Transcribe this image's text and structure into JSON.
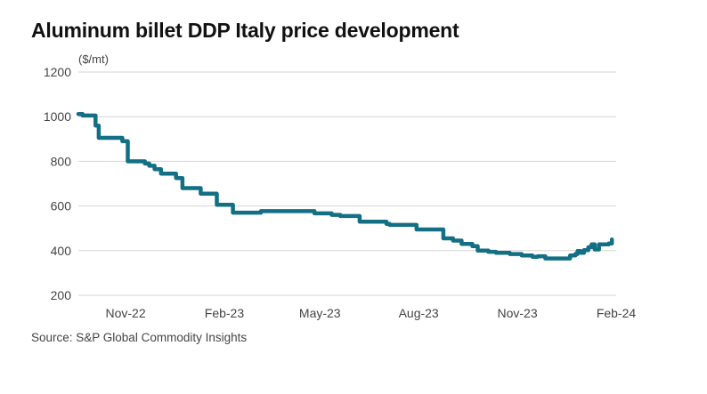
{
  "chart_data": {
    "type": "line",
    "title": "Aluminum billet DDP Italy price development",
    "ylabel": "($/mt)",
    "xlabel": "",
    "source": "Source: S&P Global Commodity Insights",
    "ylim": [
      200,
      1200
    ],
    "yticks": [
      200,
      400,
      600,
      800,
      1000,
      1200
    ],
    "xlim": [
      "2022-09-18",
      "2024-02-01"
    ],
    "xticks": [
      {
        "date": "2022-11-01",
        "label": "Nov-22"
      },
      {
        "date": "2023-02-01",
        "label": "Feb-23"
      },
      {
        "date": "2023-05-01",
        "label": "May-23"
      },
      {
        "date": "2023-08-01",
        "label": "Aug-23"
      },
      {
        "date": "2023-11-01",
        "label": "Nov-23"
      },
      {
        "date": "2024-02-01",
        "label": "Feb-24"
      }
    ],
    "grid": true,
    "step": true,
    "series": [
      {
        "name": "Aluminum billet DDP Italy",
        "color": "#136f84",
        "points": [
          [
            "2022-09-18",
            1012
          ],
          [
            "2022-09-22",
            1005
          ],
          [
            "2022-10-02",
            1005
          ],
          [
            "2022-10-04",
            960
          ],
          [
            "2022-10-07",
            905
          ],
          [
            "2022-10-28",
            905
          ],
          [
            "2022-10-29",
            890
          ],
          [
            "2022-11-02",
            890
          ],
          [
            "2022-11-03",
            800
          ],
          [
            "2022-11-17",
            800
          ],
          [
            "2022-11-19",
            790
          ],
          [
            "2022-11-23",
            780
          ],
          [
            "2022-11-28",
            765
          ],
          [
            "2022-12-04",
            745
          ],
          [
            "2022-12-16",
            745
          ],
          [
            "2022-12-18",
            725
          ],
          [
            "2022-12-22",
            725
          ],
          [
            "2022-12-24",
            680
          ],
          [
            "2023-01-09",
            680
          ],
          [
            "2023-01-10",
            655
          ],
          [
            "2023-01-22",
            655
          ],
          [
            "2023-01-25",
            605
          ],
          [
            "2023-02-06",
            605
          ],
          [
            "2023-02-09",
            570
          ],
          [
            "2023-03-05",
            570
          ],
          [
            "2023-03-07",
            577
          ],
          [
            "2023-04-24",
            577
          ],
          [
            "2023-04-26",
            567
          ],
          [
            "2023-05-10",
            567
          ],
          [
            "2023-05-12",
            560
          ],
          [
            "2023-05-20",
            555
          ],
          [
            "2023-06-05",
            555
          ],
          [
            "2023-06-07",
            530
          ],
          [
            "2023-06-29",
            530
          ],
          [
            "2023-07-02",
            520
          ],
          [
            "2023-07-05",
            515
          ],
          [
            "2023-07-27",
            515
          ],
          [
            "2023-07-30",
            495
          ],
          [
            "2023-08-19",
            495
          ],
          [
            "2023-08-24",
            455
          ],
          [
            "2023-09-02",
            445
          ],
          [
            "2023-09-10",
            430
          ],
          [
            "2023-09-20",
            420
          ],
          [
            "2023-09-25",
            400
          ],
          [
            "2023-10-05",
            395
          ],
          [
            "2023-10-12",
            390
          ],
          [
            "2023-10-25",
            385
          ],
          [
            "2023-11-05",
            378
          ],
          [
            "2023-11-15",
            372
          ],
          [
            "2023-11-20",
            375
          ],
          [
            "2023-11-27",
            365
          ],
          [
            "2023-12-16",
            365
          ],
          [
            "2023-12-20",
            378
          ],
          [
            "2023-12-25",
            385
          ],
          [
            "2023-12-27",
            398
          ],
          [
            "2023-12-30",
            390
          ],
          [
            "2024-01-02",
            402
          ],
          [
            "2024-01-06",
            415
          ],
          [
            "2024-01-09",
            428
          ],
          [
            "2024-01-12",
            405
          ],
          [
            "2024-01-16",
            428
          ],
          [
            "2024-01-25",
            432
          ],
          [
            "2024-01-28",
            450
          ]
        ]
      }
    ]
  }
}
